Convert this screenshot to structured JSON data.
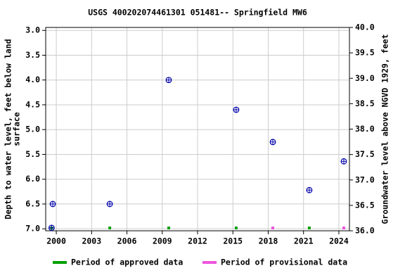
{
  "chart_data": {
    "type": "scatter",
    "title": "USGS 400202074461301 051481-- Springfield MW6",
    "ylabel": [
      "Depth to water level, feet below land",
      "surface"
    ],
    "y2label": "Groundwater level above NGVD 1929, feet",
    "xlim": [
      1999.1,
      2024.9
    ],
    "xticks": [
      2000,
      2003,
      2006,
      2009,
      2012,
      2015,
      2018,
      2021,
      2024
    ],
    "ylim": [
      2.94,
      7.04
    ],
    "yreversed": true,
    "yticks": [
      {
        "value": 3,
        "label": "3.0"
      },
      3.5,
      {
        "value": 4,
        "label": "4.0"
      },
      4.5,
      {
        "value": 5,
        "label": "5.0"
      },
      5.5,
      {
        "value": 6,
        "label": "6.0"
      },
      6.5,
      {
        "value": 7,
        "label": "7.0"
      }
    ],
    "y2lim": [
      36,
      40
    ],
    "y2ticks": [
      {
        "value": 36,
        "label": "36.0"
      },
      36.5,
      {
        "value": 37,
        "label": "37.0"
      },
      37.5,
      {
        "value": 38,
        "label": "38.0"
      },
      38.5,
      {
        "value": 39,
        "label": "39.0"
      },
      39.5,
      {
        "value": 40,
        "label": "40.0"
      }
    ],
    "grid": true,
    "series": [
      {
        "color": "#0000aa",
        "x": [
          1999.6,
          1999.7,
          2004.54,
          2009.55,
          2015.28,
          2018.39,
          2021.49,
          2024.42
        ],
        "values": [
          6.98,
          6.5,
          6.5,
          4.0,
          4.6,
          5.25,
          6.22,
          5.64
        ]
      }
    ],
    "periods": [
      {
        "name": "Period of approved data",
        "color": "#00a000",
        "x": [
          1999.6,
          2004.54,
          2009.55,
          2015.28,
          2021.49
        ]
      },
      {
        "name": "Period of provisional data",
        "color": "#ee55dd",
        "x": [
          2018.39,
          2024.42
        ]
      }
    ]
  }
}
